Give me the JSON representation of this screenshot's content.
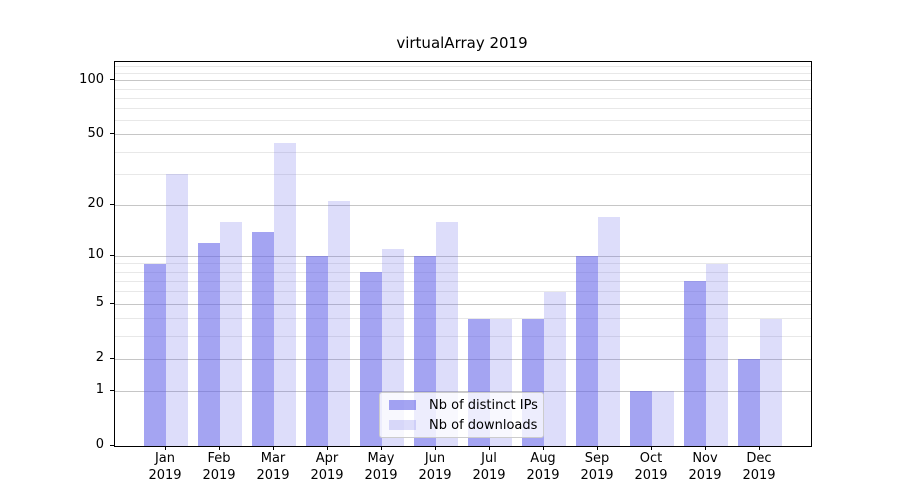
{
  "figure": {
    "title": "virtualArray 2019"
  },
  "legend": {
    "items": [
      {
        "label": "Nb of distinct IPs",
        "color": "rgba(99,99,232,0.58)"
      },
      {
        "label": "Nb of downloads",
        "color": "rgba(99,99,232,0.22)"
      }
    ]
  },
  "axes": {
    "y_tick_labels": [
      "100",
      "50",
      "20",
      "10",
      "5",
      "2",
      "1",
      "0"
    ],
    "x_year": "2019"
  },
  "chart_data": {
    "type": "bar",
    "title": "virtualArray 2019",
    "categories": [
      "Jan 2019",
      "Feb 2019",
      "Mar 2019",
      "Apr 2019",
      "May 2019",
      "Jun 2019",
      "Jul 2019",
      "Aug 2019",
      "Sep 2019",
      "Oct 2019",
      "Nov 2019",
      "Dec 2019"
    ],
    "months": [
      "Jan",
      "Feb",
      "Mar",
      "Apr",
      "May",
      "Jun",
      "Jul",
      "Aug",
      "Sep",
      "Oct",
      "Nov",
      "Dec"
    ],
    "year": "2019",
    "series": [
      {
        "name": "Nb of distinct IPs",
        "values": [
          9,
          12,
          14,
          10,
          8,
          10,
          4,
          4,
          10,
          1,
          7,
          2
        ],
        "color": "rgba(99,99,232,0.58)"
      },
      {
        "name": "Nb of downloads",
        "values": [
          30,
          16,
          45,
          21,
          11,
          16,
          4,
          6,
          17,
          1,
          9,
          4
        ],
        "color": "rgba(99,99,232,0.22)"
      }
    ],
    "xlabel": "",
    "ylabel": "",
    "yscale": "log1p",
    "ylim": [
      0,
      126
    ],
    "y_major_ticks": [
      0,
      1,
      2,
      5,
      10,
      20,
      50,
      100
    ],
    "y_minor_ticks": [
      3,
      4,
      6,
      7,
      8,
      9,
      30,
      40,
      60,
      70,
      80,
      90,
      110,
      120
    ],
    "grid": true,
    "legend_position": "lower center"
  }
}
